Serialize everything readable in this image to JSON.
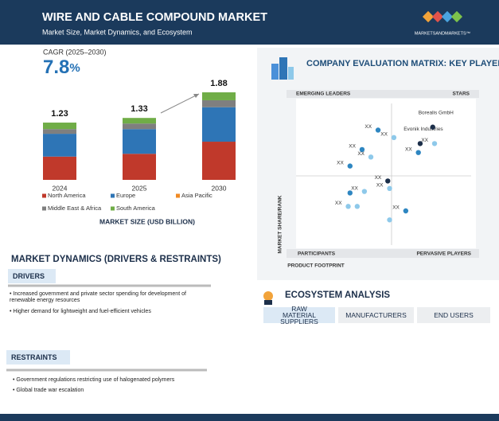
{
  "header": {
    "title": "WIRE AND CABLE COMPOUND MARKET",
    "subtitle": "Market Size, Market Dynamics, and Ecosystem",
    "brand": "MARKETSANDMARKETS™"
  },
  "cagr": {
    "label": "CAGR (2025–2030)",
    "value": "7.8",
    "unit": "%"
  },
  "chart_data": [
    {
      "type": "bar",
      "stacked": true,
      "title": "MARKET SIZE (USD BILLION)",
      "categories": [
        "2024",
        "2025",
        "2030"
      ],
      "series": [
        {
          "name": "North America",
          "color": "#c0392b",
          "values": [
            0.5,
            0.56,
            0.82
          ]
        },
        {
          "name": "Europe",
          "color": "#2e75b6",
          "values": [
            0.49,
            0.53,
            0.74
          ]
        },
        {
          "name": "Asia Pacific",
          "color": "#f08a24",
          "values": [
            0,
            0,
            0
          ]
        },
        {
          "name": "Middle East & Africa",
          "color": "#7f7f7f",
          "values": [
            0.1,
            0.12,
            0.15
          ]
        },
        {
          "name": "South America",
          "color": "#70ad47",
          "values": [
            0.14,
            0.12,
            0.17
          ]
        }
      ],
      "totals": [
        1.23,
        1.33,
        1.88
      ]
    },
    {
      "type": "scatter",
      "title": "COMPANY EVALUATION MATRIX: KEY PLAYERS",
      "xlabel": "PRODUCT FOOTPRINT",
      "ylabel": "MARKET SHARE/RANK",
      "quadrants": {
        "top_left": "EMERGING LEADERS",
        "top_right": "STARS",
        "bottom_left": "PARTICIPANTS",
        "bottom_right": "PERVASIVE PLAYERS"
      },
      "xlim": [
        0,
        100
      ],
      "ylim": [
        0,
        100
      ],
      "points": [
        {
          "x": 45.6,
          "y": 79,
          "color": "#2e86c1",
          "label": "XX"
        },
        {
          "x": 36.7,
          "y": 66,
          "color": "#2e86c1",
          "label": "XX"
        },
        {
          "x": 30,
          "y": 55,
          "color": "#2e86c1",
          "label": "XX"
        },
        {
          "x": 41.6,
          "y": 61,
          "color": "#8ec9ea",
          "label": "XX"
        },
        {
          "x": 54.4,
          "y": 74,
          "color": "#8ec9ea",
          "label": "XX"
        },
        {
          "x": 69,
          "y": 70,
          "color": "#1c2f4a",
          "label": "Evonik Industries"
        },
        {
          "x": 76,
          "y": 81,
          "color": "#1c2f4a",
          "label": "Borealis GmbH"
        },
        {
          "x": 77,
          "y": 70,
          "color": "#8ec9ea",
          "label": "XX"
        },
        {
          "x": 68,
          "y": 64,
          "color": "#2e86c1",
          "label": "XX"
        },
        {
          "x": 51,
          "y": 45,
          "color": "#1c2f4a",
          "label": "XX"
        },
        {
          "x": 52,
          "y": 40,
          "color": "#8ec9ea",
          "label": "XX"
        },
        {
          "x": 38,
          "y": 38,
          "color": "#8ec9ea",
          "label": "XX"
        },
        {
          "x": 30,
          "y": 37,
          "color": "#2e86c1",
          "label": null
        },
        {
          "x": 29,
          "y": 28,
          "color": "#8ec9ea",
          "label": "XX"
        },
        {
          "x": 34,
          "y": 28,
          "color": "#8ec9ea",
          "label": null
        },
        {
          "x": 61,
          "y": 25,
          "color": "#2e86c1",
          "label": "XX"
        },
        {
          "x": 52,
          "y": 19,
          "color": "#8ec9ea",
          "label": null
        }
      ]
    }
  ],
  "market_dynamics": {
    "title": "MARKET DYNAMICS (DRIVERS & RESTRAINTS)",
    "drivers": {
      "heading": "DRIVERS",
      "items": [
        "Increased government and private sector spending for development of renewable energy resources",
        "Higher demand for lightweight and fuel-efficient vehicles"
      ]
    },
    "restraints": {
      "heading": "RESTRAINTS",
      "items": [
        "Government regulations restricting use of halogenated polymers",
        "Global trade war escalation"
      ]
    }
  },
  "ecosystem": {
    "title": "ECOSYSTEM ANALYSIS",
    "columns": [
      "RAW MATERIAL SUPPLIERS",
      "MANUFACTURERS",
      "END USERS"
    ]
  }
}
